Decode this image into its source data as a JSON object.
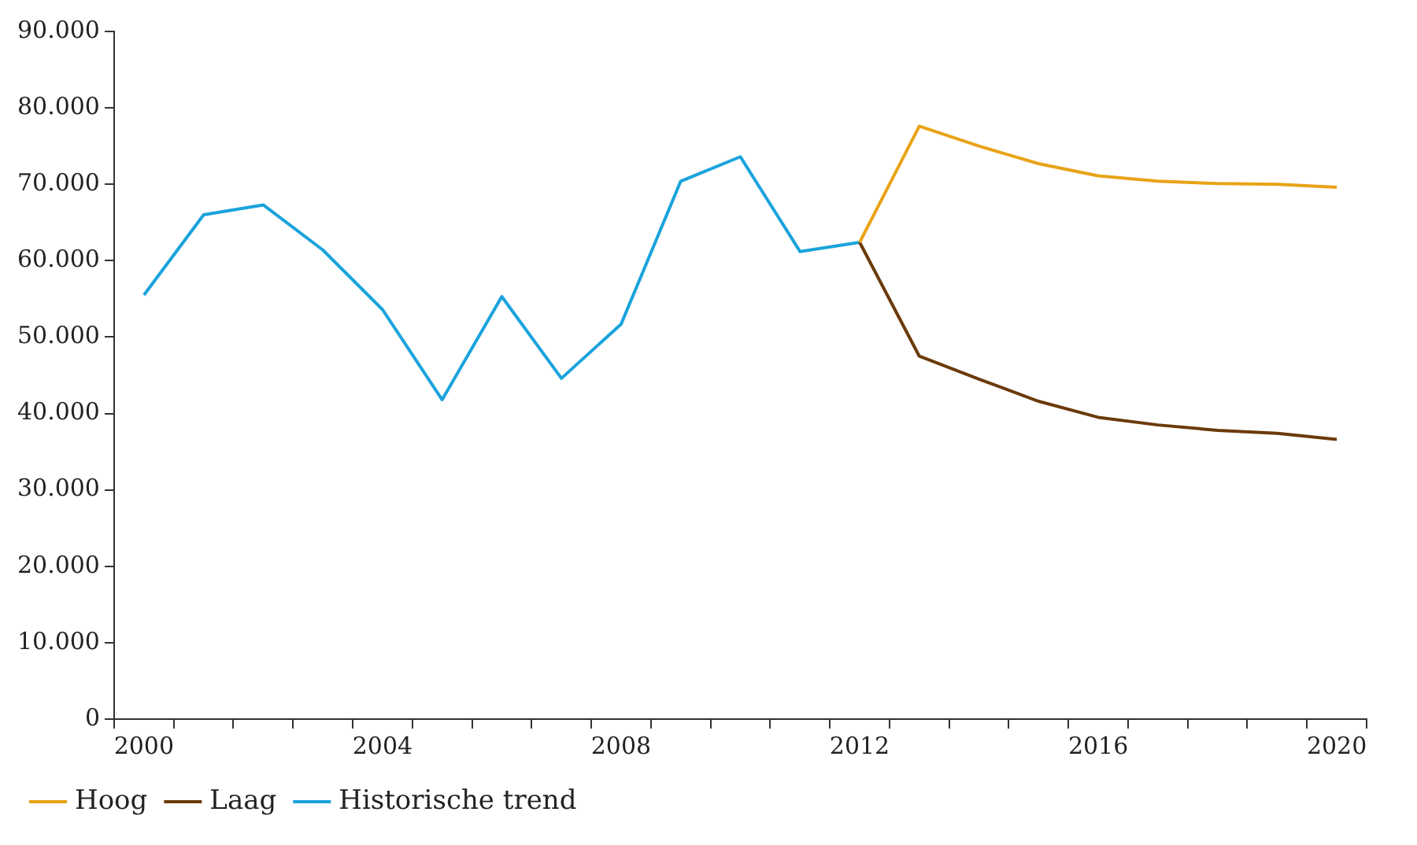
{
  "chart_data": {
    "type": "line",
    "categories": [
      "2000",
      null,
      null,
      null,
      "2004",
      null,
      null,
      null,
      "2008",
      null,
      null,
      null,
      "2012",
      null,
      null,
      null,
      "2016",
      null,
      null,
      null,
      "2020"
    ],
    "series": [
      {
        "name": "Hoog",
        "color": "#e8a317",
        "values": [
          null,
          null,
          null,
          null,
          null,
          null,
          null,
          null,
          null,
          null,
          null,
          null,
          62400,
          77600,
          75000,
          72700,
          71100,
          70400,
          70100,
          70000,
          69600
        ]
      },
      {
        "name": "Laag",
        "color": "#6b3a0a",
        "values": [
          null,
          null,
          null,
          null,
          null,
          null,
          null,
          null,
          null,
          null,
          null,
          null,
          62400,
          47500,
          44500,
          41600,
          39500,
          38500,
          37800,
          37400,
          36600
        ]
      },
      {
        "name": "Historische trend",
        "color": "#1aa3dc",
        "values": [
          55500,
          66000,
          67300,
          61400,
          53600,
          41800,
          55300,
          44600,
          51700,
          70400,
          73600,
          61200,
          62400,
          null,
          null,
          null,
          null,
          null,
          null,
          null,
          null
        ]
      }
    ],
    "ylim": [
      0,
      90000
    ],
    "yticks": [
      {
        "value": 0,
        "label": "0"
      },
      {
        "value": 10000,
        "label": "10.000"
      },
      {
        "value": 20000,
        "label": "20.000"
      },
      {
        "value": 30000,
        "label": "30.000"
      },
      {
        "value": 40000,
        "label": "40.000"
      },
      {
        "value": 50000,
        "label": "50.000"
      },
      {
        "value": 60000,
        "label": "60.000"
      },
      {
        "value": 70000,
        "label": "70.000"
      },
      {
        "value": 80000,
        "label": "80.000"
      },
      {
        "value": 90000,
        "label": "90.000"
      }
    ],
    "grid": false,
    "legend": "bottom left",
    "marker": "none",
    "line_style": "solid"
  }
}
